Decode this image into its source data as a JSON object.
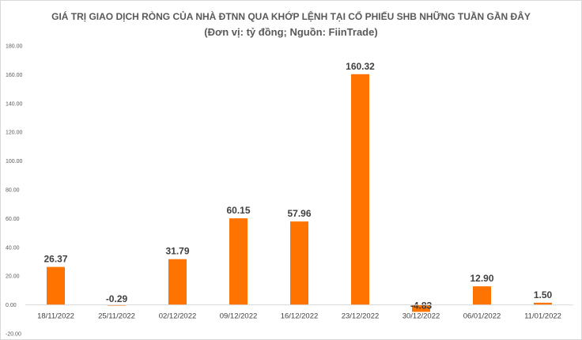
{
  "chart_data": {
    "type": "bar",
    "title": "GIÁ TRỊ GIAO DỊCH RÒNG CỦA NHÀ ĐTNN QUA KHỚP LỆNH TẠI CỔ PHIẾU SHB NHỮNG TUẦN GẦN ĐÂY",
    "subtitle": "(Đơn vị: tỷ đồng; Nguồn: FiinTrade)",
    "xlabel": "",
    "ylabel": "",
    "ylim": [
      -20,
      180
    ],
    "yticks": [
      -20,
      0,
      20,
      40,
      60,
      80,
      100,
      120,
      140,
      160,
      180
    ],
    "ytick_labels": [
      "-20.00",
      "0.00",
      "20.00",
      "40.00",
      "60.00",
      "80.00",
      "100.00",
      "120.00",
      "140.00",
      "160.00",
      "180.00"
    ],
    "grid": false,
    "categories": [
      "18/11/2022",
      "25/11/2022",
      "02/12/2022",
      "09/12/2022",
      "16/12/2022",
      "23/12/2022",
      "30/12/2022",
      "06/01/2022",
      "11/01/2022"
    ],
    "values": [
      26.37,
      -0.29,
      31.79,
      60.15,
      57.96,
      160.32,
      -4.83,
      12.9,
      1.5
    ],
    "data_labels": [
      "26.37",
      "-0.29",
      "31.79",
      "60.15",
      "57.96",
      "160.32",
      "-4.83",
      "12.90",
      "1.50"
    ],
    "bar_color": "#FF7300"
  }
}
